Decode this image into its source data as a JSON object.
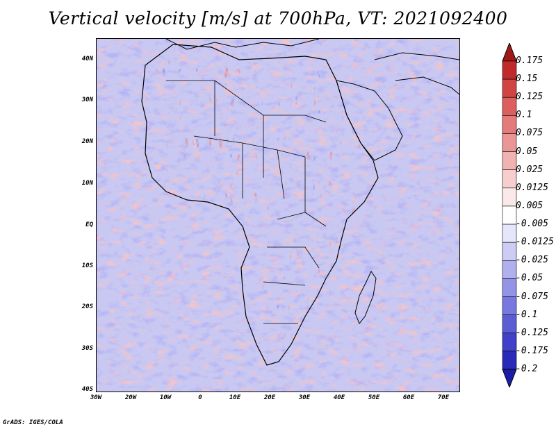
{
  "title": "Vertical velocity [m/s] at 700hPa, VT: 2021092400",
  "footer": "GrADS: IGES/COLA",
  "map": {
    "region": "Africa",
    "lat_ticks": [
      "40N",
      "30N",
      "20N",
      "10N",
      "EQ",
      "10S",
      "20S",
      "30S",
      "40S"
    ],
    "lon_ticks": [
      "30W",
      "20W",
      "10W",
      "0",
      "10E",
      "20E",
      "30E",
      "40E",
      "50E",
      "60E",
      "70E"
    ]
  },
  "colorbar": {
    "levels": [
      "0.175",
      "0.15",
      "0.125",
      "0.1",
      "0.075",
      "0.05",
      "0.025",
      "0.0125",
      "0.005",
      "-0.005",
      "-0.0125",
      "-0.025",
      "-0.05",
      "-0.075",
      "-0.1",
      "-0.125",
      "-0.175",
      "-0.2"
    ],
    "colors": [
      "#a01818",
      "#c02a2a",
      "#d04444",
      "#dc5e5e",
      "#e47a7a",
      "#eb9696",
      "#f1b2b2",
      "#f6cece",
      "#fbe8e8",
      "#ffffff",
      "#e6e6fa",
      "#ccccf4",
      "#b0b0ee",
      "#9494e6",
      "#7878de",
      "#5c5cd4",
      "#4040c8",
      "#2a2ab8",
      "#1c1ca8"
    ]
  }
}
